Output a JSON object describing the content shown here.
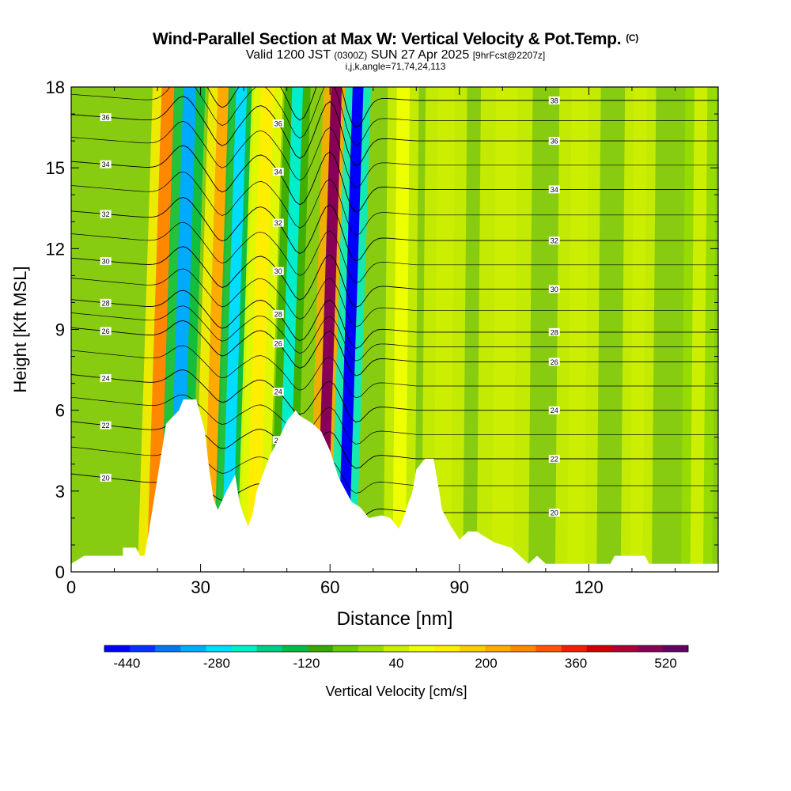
{
  "title": {
    "line1": "Wind-Parallel Section at Max W: Vertical Velocity & Pot.Temp.",
    "copyright": "(C)",
    "valid_label": "Valid 1200 JST",
    "utc": "(0300Z)",
    "date": "SUN 27 Apr 2025",
    "forecast": "[9hrFcst@2207z]",
    "line3": "i,j,k,angle=71,74,24,113"
  },
  "chart_data": {
    "type": "heatmap",
    "xlabel": "Distance [nm]",
    "ylabel": "Height [Kft MSL]",
    "xlim": [
      0,
      150
    ],
    "ylim": [
      0,
      18
    ],
    "x_ticks": [
      0,
      30,
      60,
      90,
      120
    ],
    "y_ticks": [
      0,
      3,
      6,
      9,
      12,
      15,
      18
    ],
    "colorbar": {
      "label": "Vertical Velocity [cm/s]",
      "ticks": [
        "-440",
        "-280",
        "-120",
        "40",
        "200",
        "360",
        "520"
      ],
      "min": -480,
      "max": 560,
      "colors": [
        "#0000ff",
        "#0033ff",
        "#0077ee",
        "#00aaff",
        "#00ddff",
        "#00eecc",
        "#00cc88",
        "#00bb44",
        "#33aa00",
        "#66cc00",
        "#99dd00",
        "#ccee00",
        "#eeff00",
        "#ffee00",
        "#ffcc00",
        "#ffaa00",
        "#ff8800",
        "#ff5500",
        "#ee2200",
        "#cc0000",
        "#aa0033",
        "#880055",
        "#660066"
      ]
    },
    "vertical_velocity_bands": [
      {
        "x": 19,
        "w": 3,
        "value": 250
      },
      {
        "x": 24,
        "w": 3,
        "value": -300
      },
      {
        "x": 32,
        "w": 3,
        "value": 220
      },
      {
        "x": 36,
        "w": 2.5,
        "value": -260
      },
      {
        "x": 42,
        "w": 3,
        "value": 140
      },
      {
        "x": 49,
        "w": 2.5,
        "value": -220
      },
      {
        "x": 58,
        "w": 2.5,
        "value": 480
      },
      {
        "x": 63,
        "w": 2.5,
        "value": -440
      },
      {
        "x": 76,
        "w": 3,
        "value": 80
      },
      {
        "x": 86,
        "w": 4,
        "value": 60
      },
      {
        "x": 100,
        "w": 5,
        "value": 50
      },
      {
        "x": 117,
        "w": 4,
        "value": 40
      },
      {
        "x": 131,
        "w": 3,
        "value": 50
      },
      {
        "x": 145,
        "w": 3,
        "value": 30
      }
    ],
    "terrain": [
      [
        0,
        0.3
      ],
      [
        3,
        0.6
      ],
      [
        12,
        0.6
      ],
      [
        12,
        0.9
      ],
      [
        15,
        0.9
      ],
      [
        16,
        0.6
      ],
      [
        17,
        0.6
      ],
      [
        18,
        1.5
      ],
      [
        20,
        3.5
      ],
      [
        22,
        5.5
      ],
      [
        25,
        6.0
      ],
      [
        26,
        6.4
      ],
      [
        29,
        6.4
      ],
      [
        31,
        5.2
      ],
      [
        32,
        3.8
      ],
      [
        33,
        2.7
      ],
      [
        34,
        2.3
      ],
      [
        36,
        3.0
      ],
      [
        38,
        3.6
      ],
      [
        39,
        2.6
      ],
      [
        40,
        2.1
      ],
      [
        41,
        1.7
      ],
      [
        42,
        2.1
      ],
      [
        43,
        3.0
      ],
      [
        46,
        4.3
      ],
      [
        48,
        4.9
      ],
      [
        50,
        5.6
      ],
      [
        52,
        6.0
      ],
      [
        53,
        5.8
      ],
      [
        56,
        5.5
      ],
      [
        58,
        5.2
      ],
      [
        60,
        4.5
      ],
      [
        62,
        3.5
      ],
      [
        65,
        2.6
      ],
      [
        67,
        2.4
      ],
      [
        69,
        2.0
      ],
      [
        72,
        2.1
      ],
      [
        74,
        2.0
      ],
      [
        76,
        1.6
      ],
      [
        77,
        2.0
      ],
      [
        78,
        2.5
      ],
      [
        79,
        2.9
      ],
      [
        80,
        3.8
      ],
      [
        82,
        4.2
      ],
      [
        84,
        4.2
      ],
      [
        85,
        3.3
      ],
      [
        86,
        2.3
      ],
      [
        88,
        1.7
      ],
      [
        90,
        1.2
      ],
      [
        92,
        1.5
      ],
      [
        94,
        1.5
      ],
      [
        96,
        1.3
      ],
      [
        98,
        1.1
      ],
      [
        100,
        1.0
      ],
      [
        102,
        0.9
      ],
      [
        104,
        0.6
      ],
      [
        106,
        0.3
      ],
      [
        108,
        0.6
      ],
      [
        110,
        0.3
      ],
      [
        125,
        0.3
      ],
      [
        126,
        0.6
      ],
      [
        133,
        0.6
      ],
      [
        134,
        0.3
      ],
      [
        150,
        0.3
      ]
    ],
    "theta_contours": [
      {
        "label": "20",
        "base": 3.0
      },
      {
        "label": "22",
        "base": 5.0
      },
      {
        "label": "24",
        "base": 6.8
      },
      {
        "label": "26",
        "base": 8.6
      },
      {
        "label": "28",
        "base": 9.7
      },
      {
        "label": "30",
        "base": 11.3
      },
      {
        "label": "32",
        "base": 13.1
      },
      {
        "label": "34",
        "base": 15.0
      },
      {
        "label": "36",
        "base": 16.8
      },
      {
        "label": "38",
        "base": 18.3
      }
    ]
  }
}
